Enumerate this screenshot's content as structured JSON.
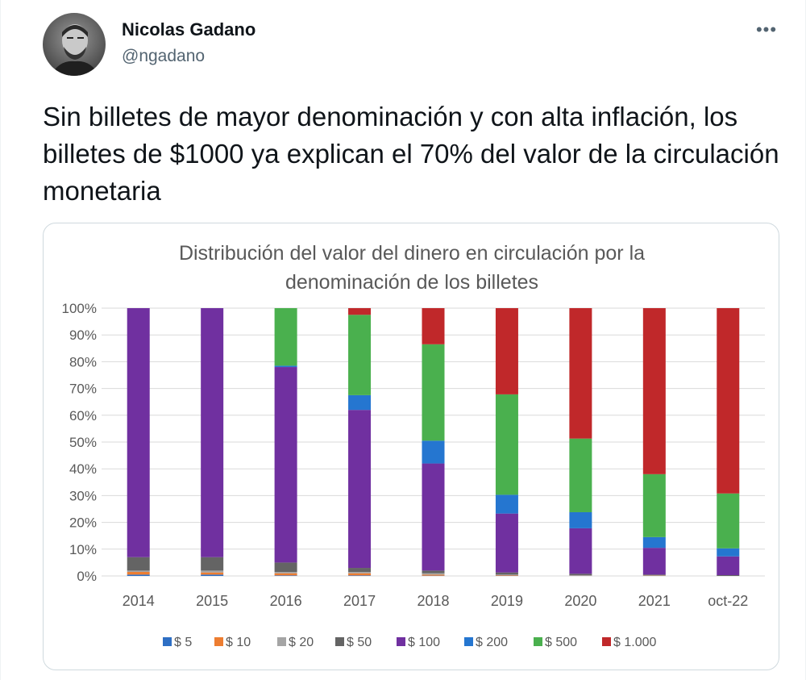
{
  "author": {
    "name": "Nicolas Gadano",
    "handle": "@ngadano"
  },
  "actions": {
    "more_icon": "more-horizontal-icon",
    "more_label": "•••"
  },
  "tweet": {
    "text": "Sin billetes de mayor denominación y con alta inflación, los billetes de $1000 ya explican el 70% del valor de la circulación monetaria"
  },
  "colors": {
    "$ 5": "#2e6fc4",
    "$ 10": "#ed7d31",
    "$ 20": "#a5a5a5",
    "$ 50": "#646464",
    "$ 100": "#7030a0",
    "$ 200": "#2576d0",
    "$ 500": "#4ab04e",
    "$ 1.000": "#c0282a"
  },
  "chart_data": {
    "type": "bar",
    "stacked": true,
    "title": "Distribución del valor del dinero en circulación por la denominación de los billetes",
    "xlabel": "",
    "ylabel": "",
    "ylim": [
      0,
      100
    ],
    "y_ticks": [
      "0%",
      "10%",
      "20%",
      "30%",
      "40%",
      "50%",
      "60%",
      "70%",
      "80%",
      "90%",
      "100%"
    ],
    "categories": [
      "2014",
      "2015",
      "2016",
      "2017",
      "2018",
      "2019",
      "2020",
      "2021",
      "oct-22"
    ],
    "legend_position": "bottom",
    "grid": true,
    "series": [
      {
        "name": "$ 5",
        "values": [
          0.5,
          0.5,
          0.2,
          0.2,
          0.1,
          0.1,
          0.1,
          0.0,
          0.0
        ]
      },
      {
        "name": "$ 10",
        "values": [
          1.0,
          0.8,
          0.8,
          0.8,
          0.4,
          0.2,
          0.1,
          0.1,
          0.0
        ]
      },
      {
        "name": "$ 20",
        "values": [
          0.5,
          0.7,
          0.5,
          0.5,
          0.5,
          0.2,
          0.1,
          0.1,
          0.0
        ]
      },
      {
        "name": "$ 50",
        "values": [
          5.0,
          5.0,
          3.5,
          1.5,
          1.0,
          0.8,
          0.5,
          0.3,
          0.3
        ]
      },
      {
        "name": "$ 100",
        "values": [
          93.0,
          93.0,
          73.0,
          59.0,
          40.0,
          22.0,
          17.0,
          10.0,
          7.0
        ]
      },
      {
        "name": "$ 200",
        "values": [
          0.0,
          0.0,
          0.5,
          5.5,
          8.5,
          7.0,
          6.0,
          4.0,
          3.0
        ]
      },
      {
        "name": "$ 500",
        "values": [
          0.0,
          0.0,
          21.5,
          30.0,
          36.0,
          37.5,
          27.5,
          23.5,
          20.5
        ]
      },
      {
        "name": "$ 1.000",
        "values": [
          0.0,
          0.0,
          0.0,
          2.5,
          13.5,
          32.2,
          48.7,
          62.0,
          69.2
        ]
      }
    ]
  }
}
